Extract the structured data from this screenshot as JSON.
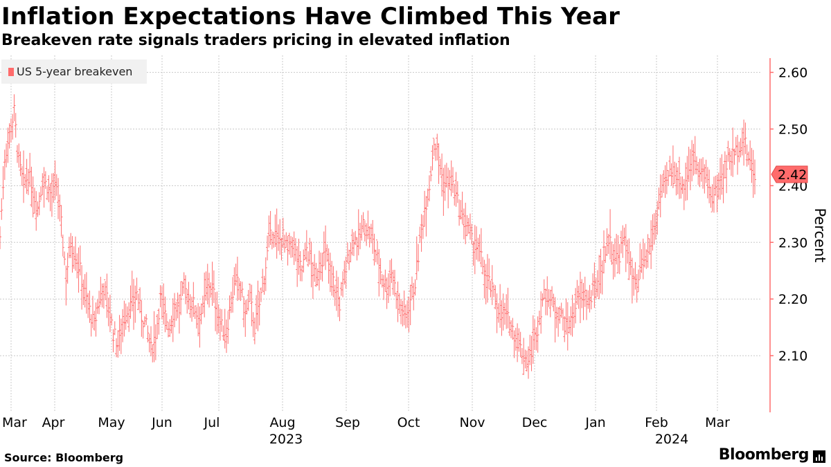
{
  "chart_data": {
    "type": "line",
    "title": "Inflation Expectations Have Climbed This Year",
    "subtitle": "Breakeven rate signals traders pricing in elevated inflation",
    "xlabel": "",
    "ylabel": "Percent",
    "ylim": [
      2.0,
      2.63
    ],
    "yticks": [
      "2.60",
      "2.50",
      "2.40",
      "2.30",
      "2.20",
      "2.10"
    ],
    "grid": true,
    "legend_position": "top-left",
    "series": [
      {
        "name": "US 5-year breakeven",
        "color": "#ff6b6b",
        "values": [
          2.31,
          2.45,
          2.49,
          2.53,
          2.44,
          2.4,
          2.42,
          2.39,
          2.36,
          2.41,
          2.4,
          2.38,
          2.4,
          2.33,
          2.24,
          2.3,
          2.28,
          2.25,
          2.21,
          2.18,
          2.15,
          2.2,
          2.22,
          2.19,
          2.14,
          2.12,
          2.16,
          2.18,
          2.19,
          2.21,
          2.17,
          2.15,
          2.11,
          2.14,
          2.2,
          2.17,
          2.15,
          2.19,
          2.18,
          2.22,
          2.2,
          2.19,
          2.17,
          2.18,
          2.23,
          2.22,
          2.18,
          2.15,
          2.14,
          2.2,
          2.23,
          2.22,
          2.17,
          2.2,
          2.15,
          2.19,
          2.24,
          2.3,
          2.32,
          2.3,
          2.31,
          2.28,
          2.3,
          2.27,
          2.25,
          2.29,
          2.26,
          2.23,
          2.27,
          2.28,
          2.25,
          2.22,
          2.19,
          2.24,
          2.28,
          2.31,
          2.3,
          2.33,
          2.32,
          2.3,
          2.27,
          2.24,
          2.22,
          2.25,
          2.21,
          2.18,
          2.17,
          2.2,
          2.23,
          2.3,
          2.36,
          2.4,
          2.48,
          2.45,
          2.4,
          2.41,
          2.4,
          2.37,
          2.34,
          2.33,
          2.3,
          2.29,
          2.27,
          2.24,
          2.22,
          2.2,
          2.18,
          2.17,
          2.16,
          2.14,
          2.12,
          2.1,
          2.09,
          2.12,
          2.15,
          2.2,
          2.21,
          2.19,
          2.18,
          2.17,
          2.15,
          2.16,
          2.19,
          2.2,
          2.21,
          2.19,
          2.22,
          2.24,
          2.27,
          2.31,
          2.28,
          2.27,
          2.3,
          2.29,
          2.24,
          2.21,
          2.26,
          2.27,
          2.3,
          2.34,
          2.38,
          2.4,
          2.42,
          2.43,
          2.41,
          2.4,
          2.43,
          2.45,
          2.44,
          2.42,
          2.4,
          2.38,
          2.39,
          2.42,
          2.44,
          2.45,
          2.46,
          2.48,
          2.47,
          2.44,
          2.42
        ]
      }
    ],
    "last_value_label": "2.42",
    "x_tick_labels": [
      "Mar",
      "Apr",
      "May",
      "Jun",
      "Jul",
      "Aug",
      "Sep",
      "Oct",
      "Nov",
      "Dec",
      "Jan",
      "Feb",
      "Mar"
    ],
    "x_year_labels": [
      "2023",
      "2024"
    ],
    "source": "Source: Bloomberg"
  },
  "brand": {
    "name": "Bloomberg"
  },
  "colors": {
    "series": "#ff6b6b",
    "grid": "#c8c8c8",
    "axis": "#ff6b6b",
    "legend_bg": "#f1f1f1"
  }
}
